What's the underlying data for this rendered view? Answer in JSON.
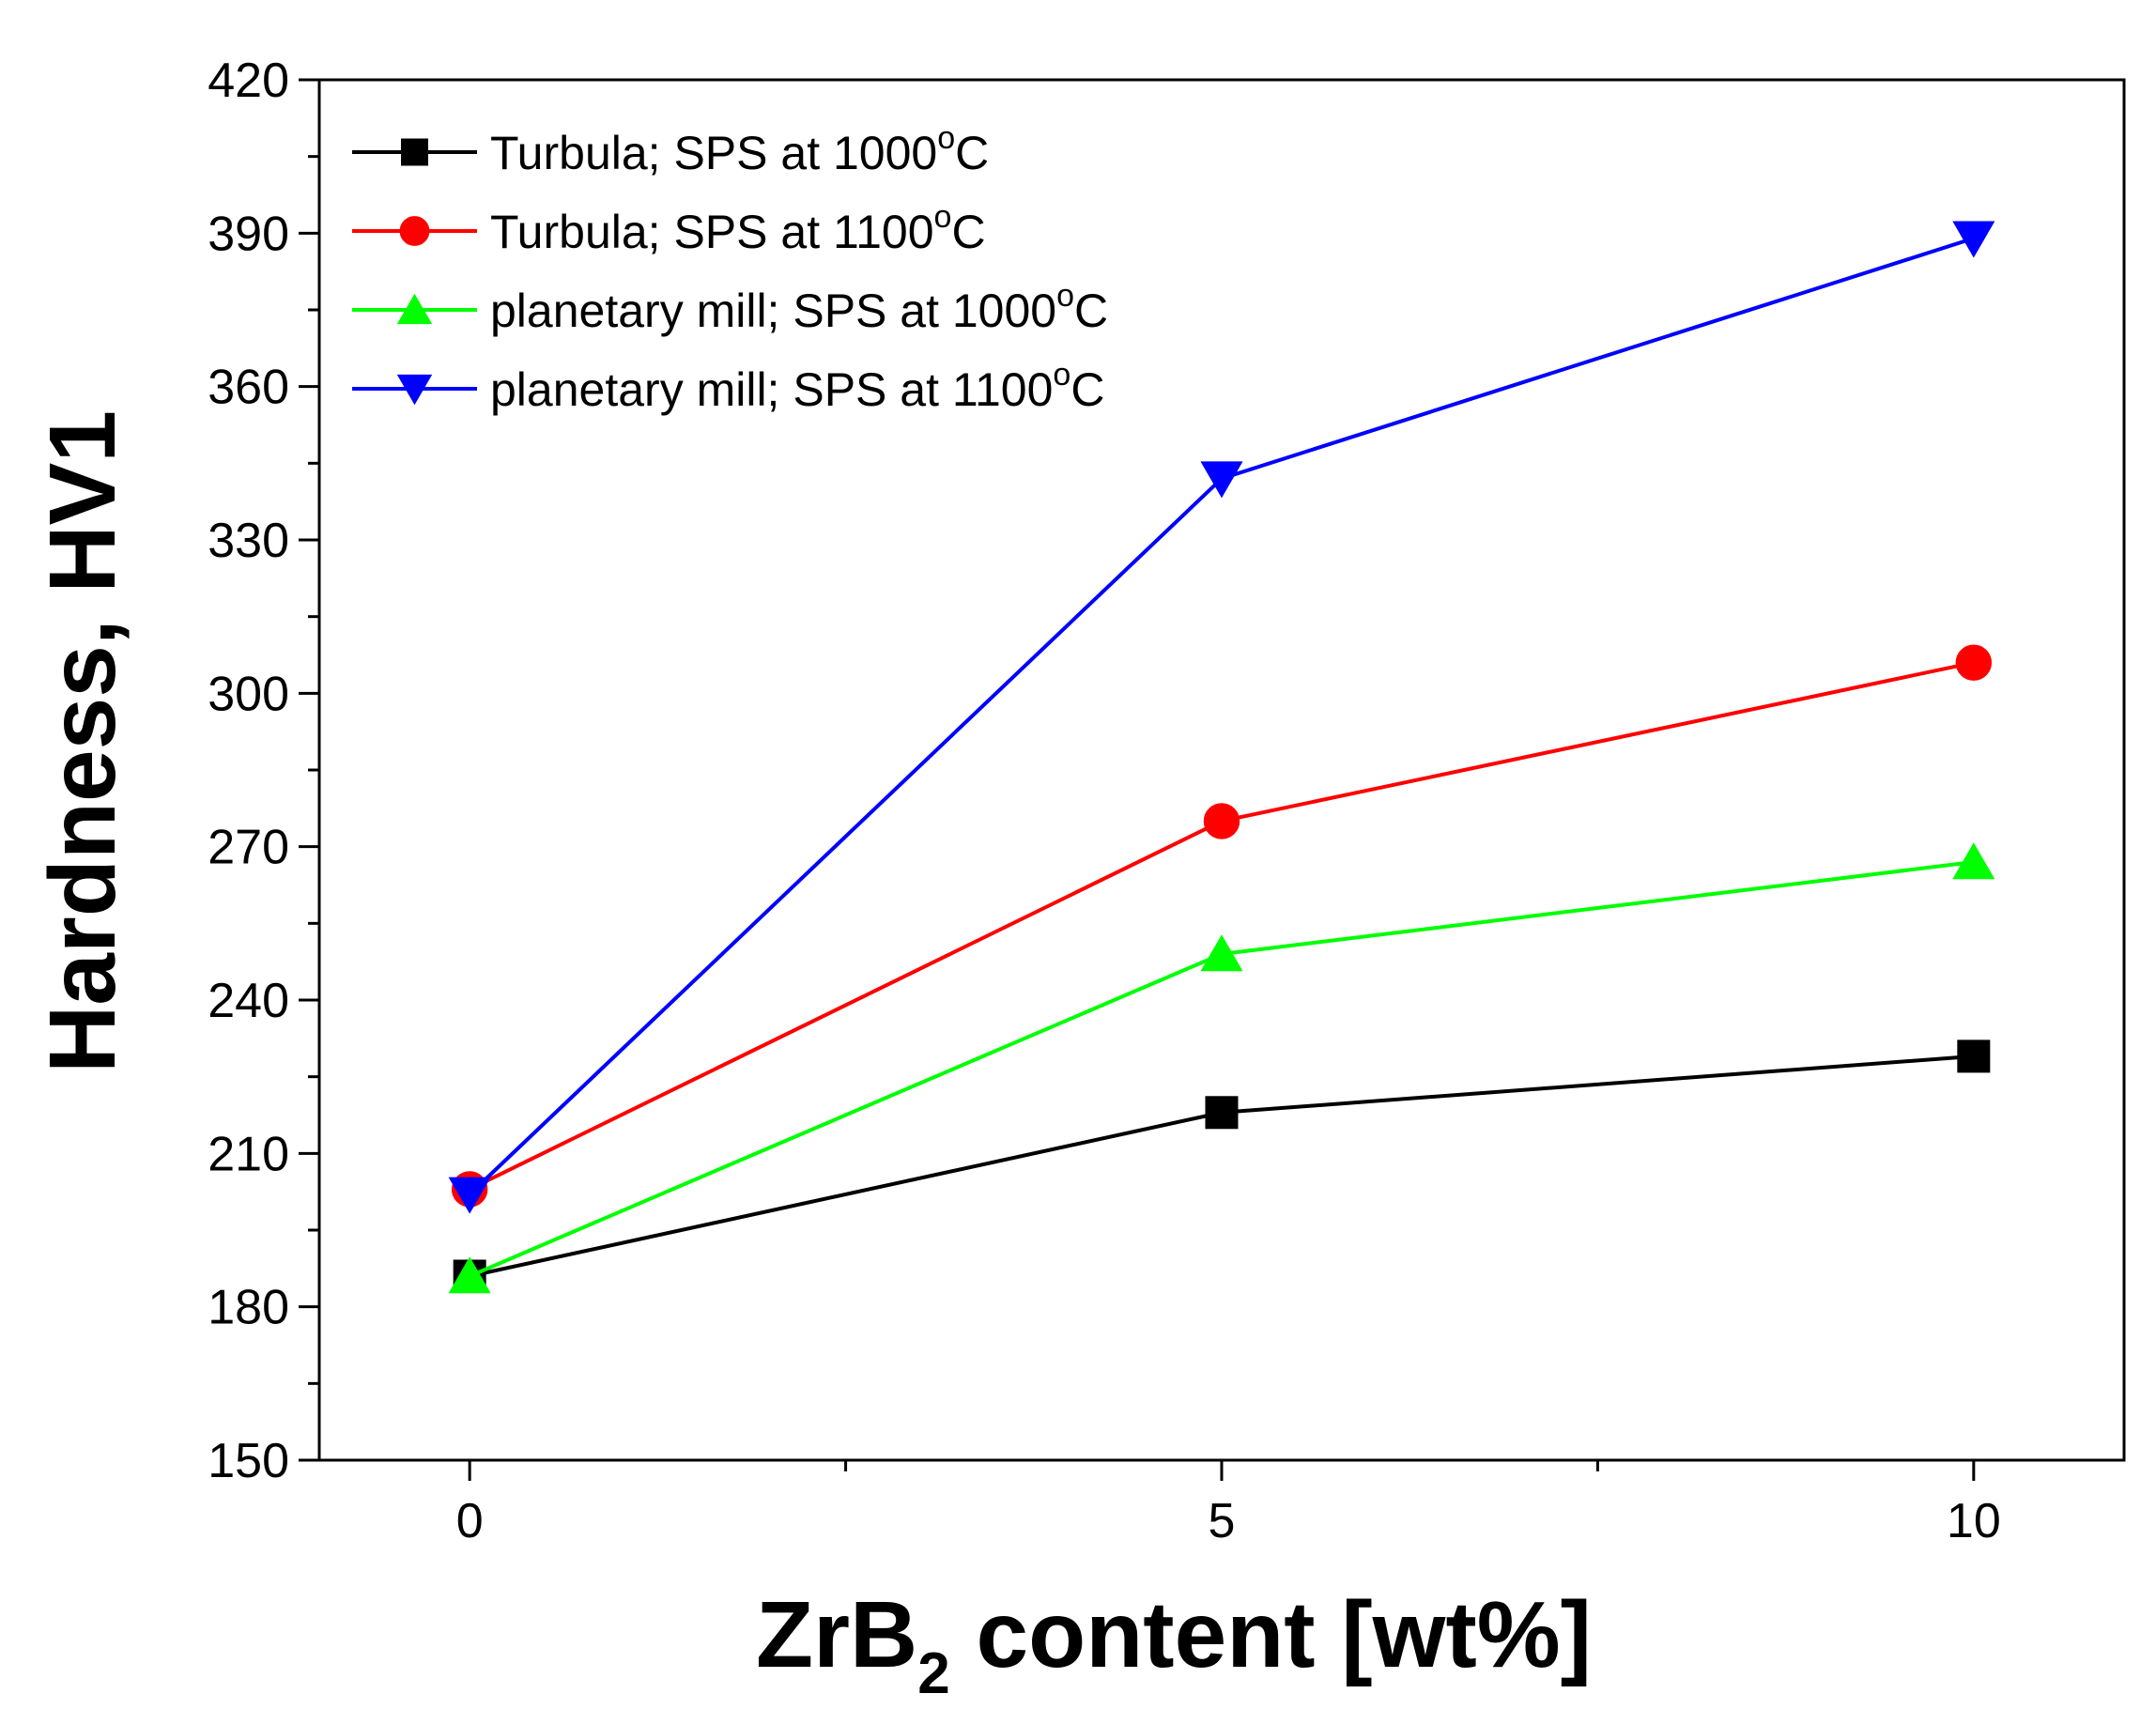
{
  "chart_data": {
    "type": "line",
    "title": "",
    "xlabel": {
      "main": "ZrB",
      "subscript": "2",
      "rest": " content [wt%]"
    },
    "ylabel": "Hardness, HV1",
    "x": [
      0,
      5,
      10
    ],
    "xlim": [
      -1,
      11
    ],
    "ylim": [
      150,
      420
    ],
    "xticks": [
      0,
      5,
      10
    ],
    "xtick_labels": [
      "0",
      "5",
      "10"
    ],
    "yticks": [
      150,
      180,
      210,
      240,
      270,
      300,
      330,
      360,
      390,
      420
    ],
    "ytick_labels": [
      "150",
      "180",
      "210",
      "240",
      "270",
      "300",
      "330",
      "360",
      "390",
      "420"
    ],
    "grid": false,
    "legend_position": "top-left",
    "series": [
      {
        "name": "Turbula; SPS at 1000°C",
        "label_pre": "Turbula; SPS at 1000",
        "label_sup": "o",
        "label_post": "C",
        "color": "#000000",
        "marker": "square",
        "values": [
          186,
          218,
          229
        ]
      },
      {
        "name": "Turbula; SPS at 1100°C",
        "label_pre": "Turbula; SPS at 1100",
        "label_sup": "o",
        "label_post": "C",
        "color": "#ff0000",
        "marker": "circle",
        "values": [
          203,
          275,
          306
        ]
      },
      {
        "name": "planetary mill; SPS at 1000°C",
        "label_pre": "planetary mill; SPS at 1000",
        "label_sup": "o",
        "label_post": "C",
        "color": "#00ff00",
        "marker": "triangle-up",
        "values": [
          186,
          249,
          267
        ]
      },
      {
        "name": "planetary mill; SPS at 1100°C",
        "label_pre": "planetary mill; SPS at 1100",
        "label_sup": "o",
        "label_post": "C",
        "color": "#0000ff",
        "marker": "triangle-down",
        "values": [
          202,
          342,
          389
        ]
      }
    ]
  }
}
